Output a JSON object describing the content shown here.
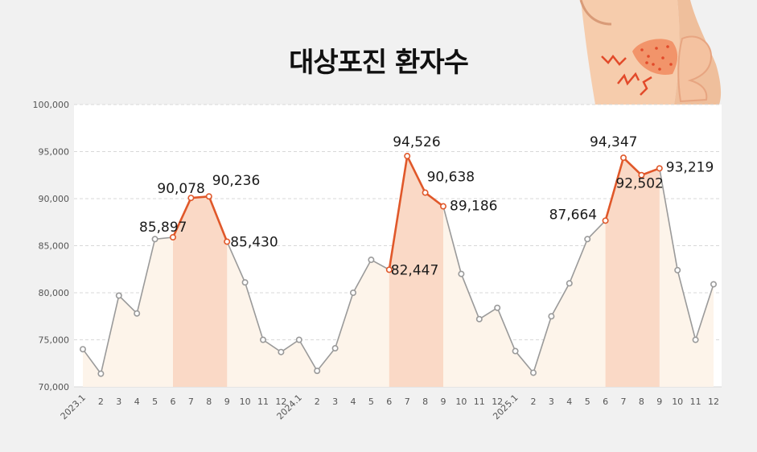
{
  "colors": {
    "background": "#f1f1f1",
    "plot_background": "#ffffff",
    "line": "#9a9a9a",
    "highlight_line": "#e0582a",
    "area_fill": "#fdf4ea",
    "highlight_fill": "#fad9c6",
    "skin": "#f6ccac",
    "rash": "#f2946a",
    "rash_line": "#e24a2a"
  },
  "illustration": {
    "icon": "skin-rash-illustration"
  },
  "chart_data": {
    "type": "line",
    "title": "대상포진 환자수",
    "xlabel": "",
    "ylabel": "",
    "ylim": [
      70000,
      100000
    ],
    "yticks": [
      70000,
      75000,
      80000,
      85000,
      90000,
      95000,
      100000
    ],
    "ytick_labels": [
      "70,000",
      "75,000",
      "80,000",
      "85,000",
      "90,000",
      "95,000",
      "100,000"
    ],
    "grid": true,
    "x": [
      "2023.1",
      "2",
      "3",
      "4",
      "5",
      "6",
      "7",
      "8",
      "9",
      "10",
      "11",
      "12",
      "2024.1",
      "2",
      "3",
      "4",
      "5",
      "6",
      "7",
      "8",
      "9",
      "10",
      "11",
      "12",
      "2025.1",
      "2",
      "3",
      "4",
      "5",
      "6",
      "7",
      "8",
      "9",
      "10",
      "11",
      "12"
    ],
    "values": [
      74000,
      71400,
      79700,
      77800,
      85700,
      85897,
      90078,
      90236,
      85430,
      81100,
      75000,
      73700,
      75000,
      71700,
      74100,
      80000,
      83500,
      82447,
      94526,
      90638,
      89186,
      82000,
      77200,
      78400,
      73800,
      71500,
      77500,
      81000,
      85700,
      87664,
      94347,
      92502,
      93219,
      82400,
      75000,
      80900
    ],
    "highlight_ranges": [
      [
        5,
        8
      ],
      [
        17,
        20
      ],
      [
        29,
        32
      ]
    ],
    "data_labels": [
      {
        "index": 5,
        "text": "85,897"
      },
      {
        "index": 6,
        "text": "90,078"
      },
      {
        "index": 7,
        "text": "90,236"
      },
      {
        "index": 8,
        "text": "85,430"
      },
      {
        "index": 17,
        "text": "82,447"
      },
      {
        "index": 18,
        "text": "94,526"
      },
      {
        "index": 19,
        "text": "90,638"
      },
      {
        "index": 20,
        "text": "89,186"
      },
      {
        "index": 29,
        "text": "87,664"
      },
      {
        "index": 30,
        "text": "94,347"
      },
      {
        "index": 31,
        "text": "92,502"
      },
      {
        "index": 32,
        "text": "93,219"
      }
    ]
  }
}
